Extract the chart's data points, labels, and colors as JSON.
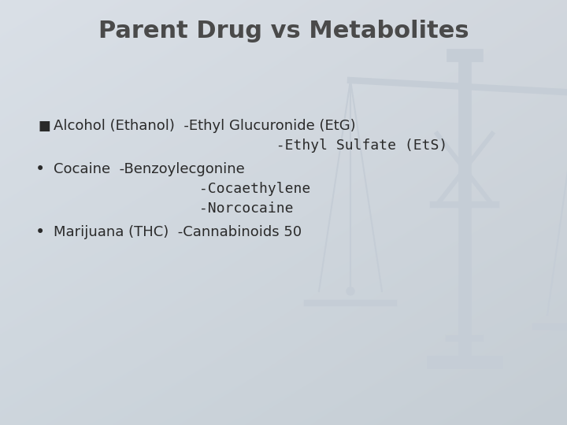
{
  "title": "Parent Drug vs Metabolites",
  "title_fontsize": 22,
  "title_color": "#4a4a4a",
  "title_fontweight": "bold",
  "bg_color": "#cdd4da",
  "text_color": "#2a2a2a",
  "text_fontsize": 13,
  "bullet1_marker": "■",
  "bullet1_line1": "Alcohol (Ethanol)  -Ethyl Glucuronide (EtG)",
  "bullet1_line2": "                          -Ethyl Sulfate (EtS)",
  "bullet2_line1": "Cocaine  -Benzoylecgonine",
  "bullet2_line2": "                 -Cocaethylene",
  "bullet2_line3": "                 -Norcocaine",
  "bullet3_line1": "Marijuana (THC)  -Cannabinoids 50",
  "scale_color": "#c5cdd6"
}
